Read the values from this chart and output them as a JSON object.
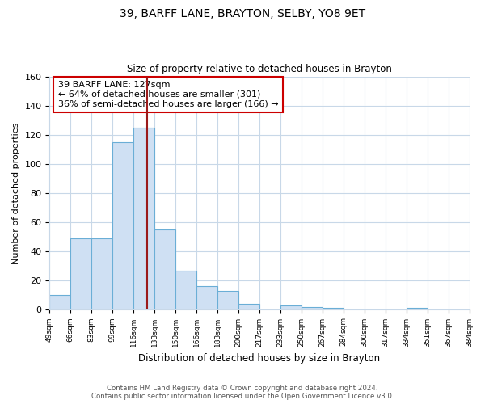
{
  "title": "39, BARFF LANE, BRAYTON, SELBY, YO8 9ET",
  "subtitle": "Size of property relative to detached houses in Brayton",
  "xlabel": "Distribution of detached houses by size in Brayton",
  "ylabel": "Number of detached properties",
  "bar_values": [
    10,
    49,
    49,
    115,
    125,
    55,
    27,
    16,
    13,
    4,
    0,
    3,
    2,
    1,
    0,
    0,
    0,
    1
  ],
  "bin_labels": [
    "49sqm",
    "66sqm",
    "83sqm",
    "99sqm",
    "116sqm",
    "133sqm",
    "150sqm",
    "166sqm",
    "183sqm",
    "200sqm",
    "217sqm",
    "233sqm",
    "250sqm",
    "267sqm",
    "284sqm",
    "300sqm",
    "317sqm",
    "334sqm",
    "351sqm",
    "367sqm",
    "384sqm"
  ],
  "bar_color": "#cfe0f3",
  "bar_edge_color": "#6aaed6",
  "marker_line_color": "#9b1a1a",
  "annotation_text_line1": "39 BARFF LANE: 127sqm",
  "annotation_text_line2": "← 64% of detached houses are smaller (301)",
  "annotation_text_line3": "36% of semi-detached houses are larger (166) →",
  "annotation_box_color": "#ffffff",
  "annotation_box_edge_color": "#cc0000",
  "ylim": [
    0,
    160
  ],
  "yticks": [
    0,
    20,
    40,
    60,
    80,
    100,
    120,
    140,
    160
  ],
  "footer_line1": "Contains HM Land Registry data © Crown copyright and database right 2024.",
  "footer_line2": "Contains public sector information licensed under the Open Government Licence v3.0.",
  "background_color": "#ffffff",
  "grid_color": "#c8d8e8"
}
